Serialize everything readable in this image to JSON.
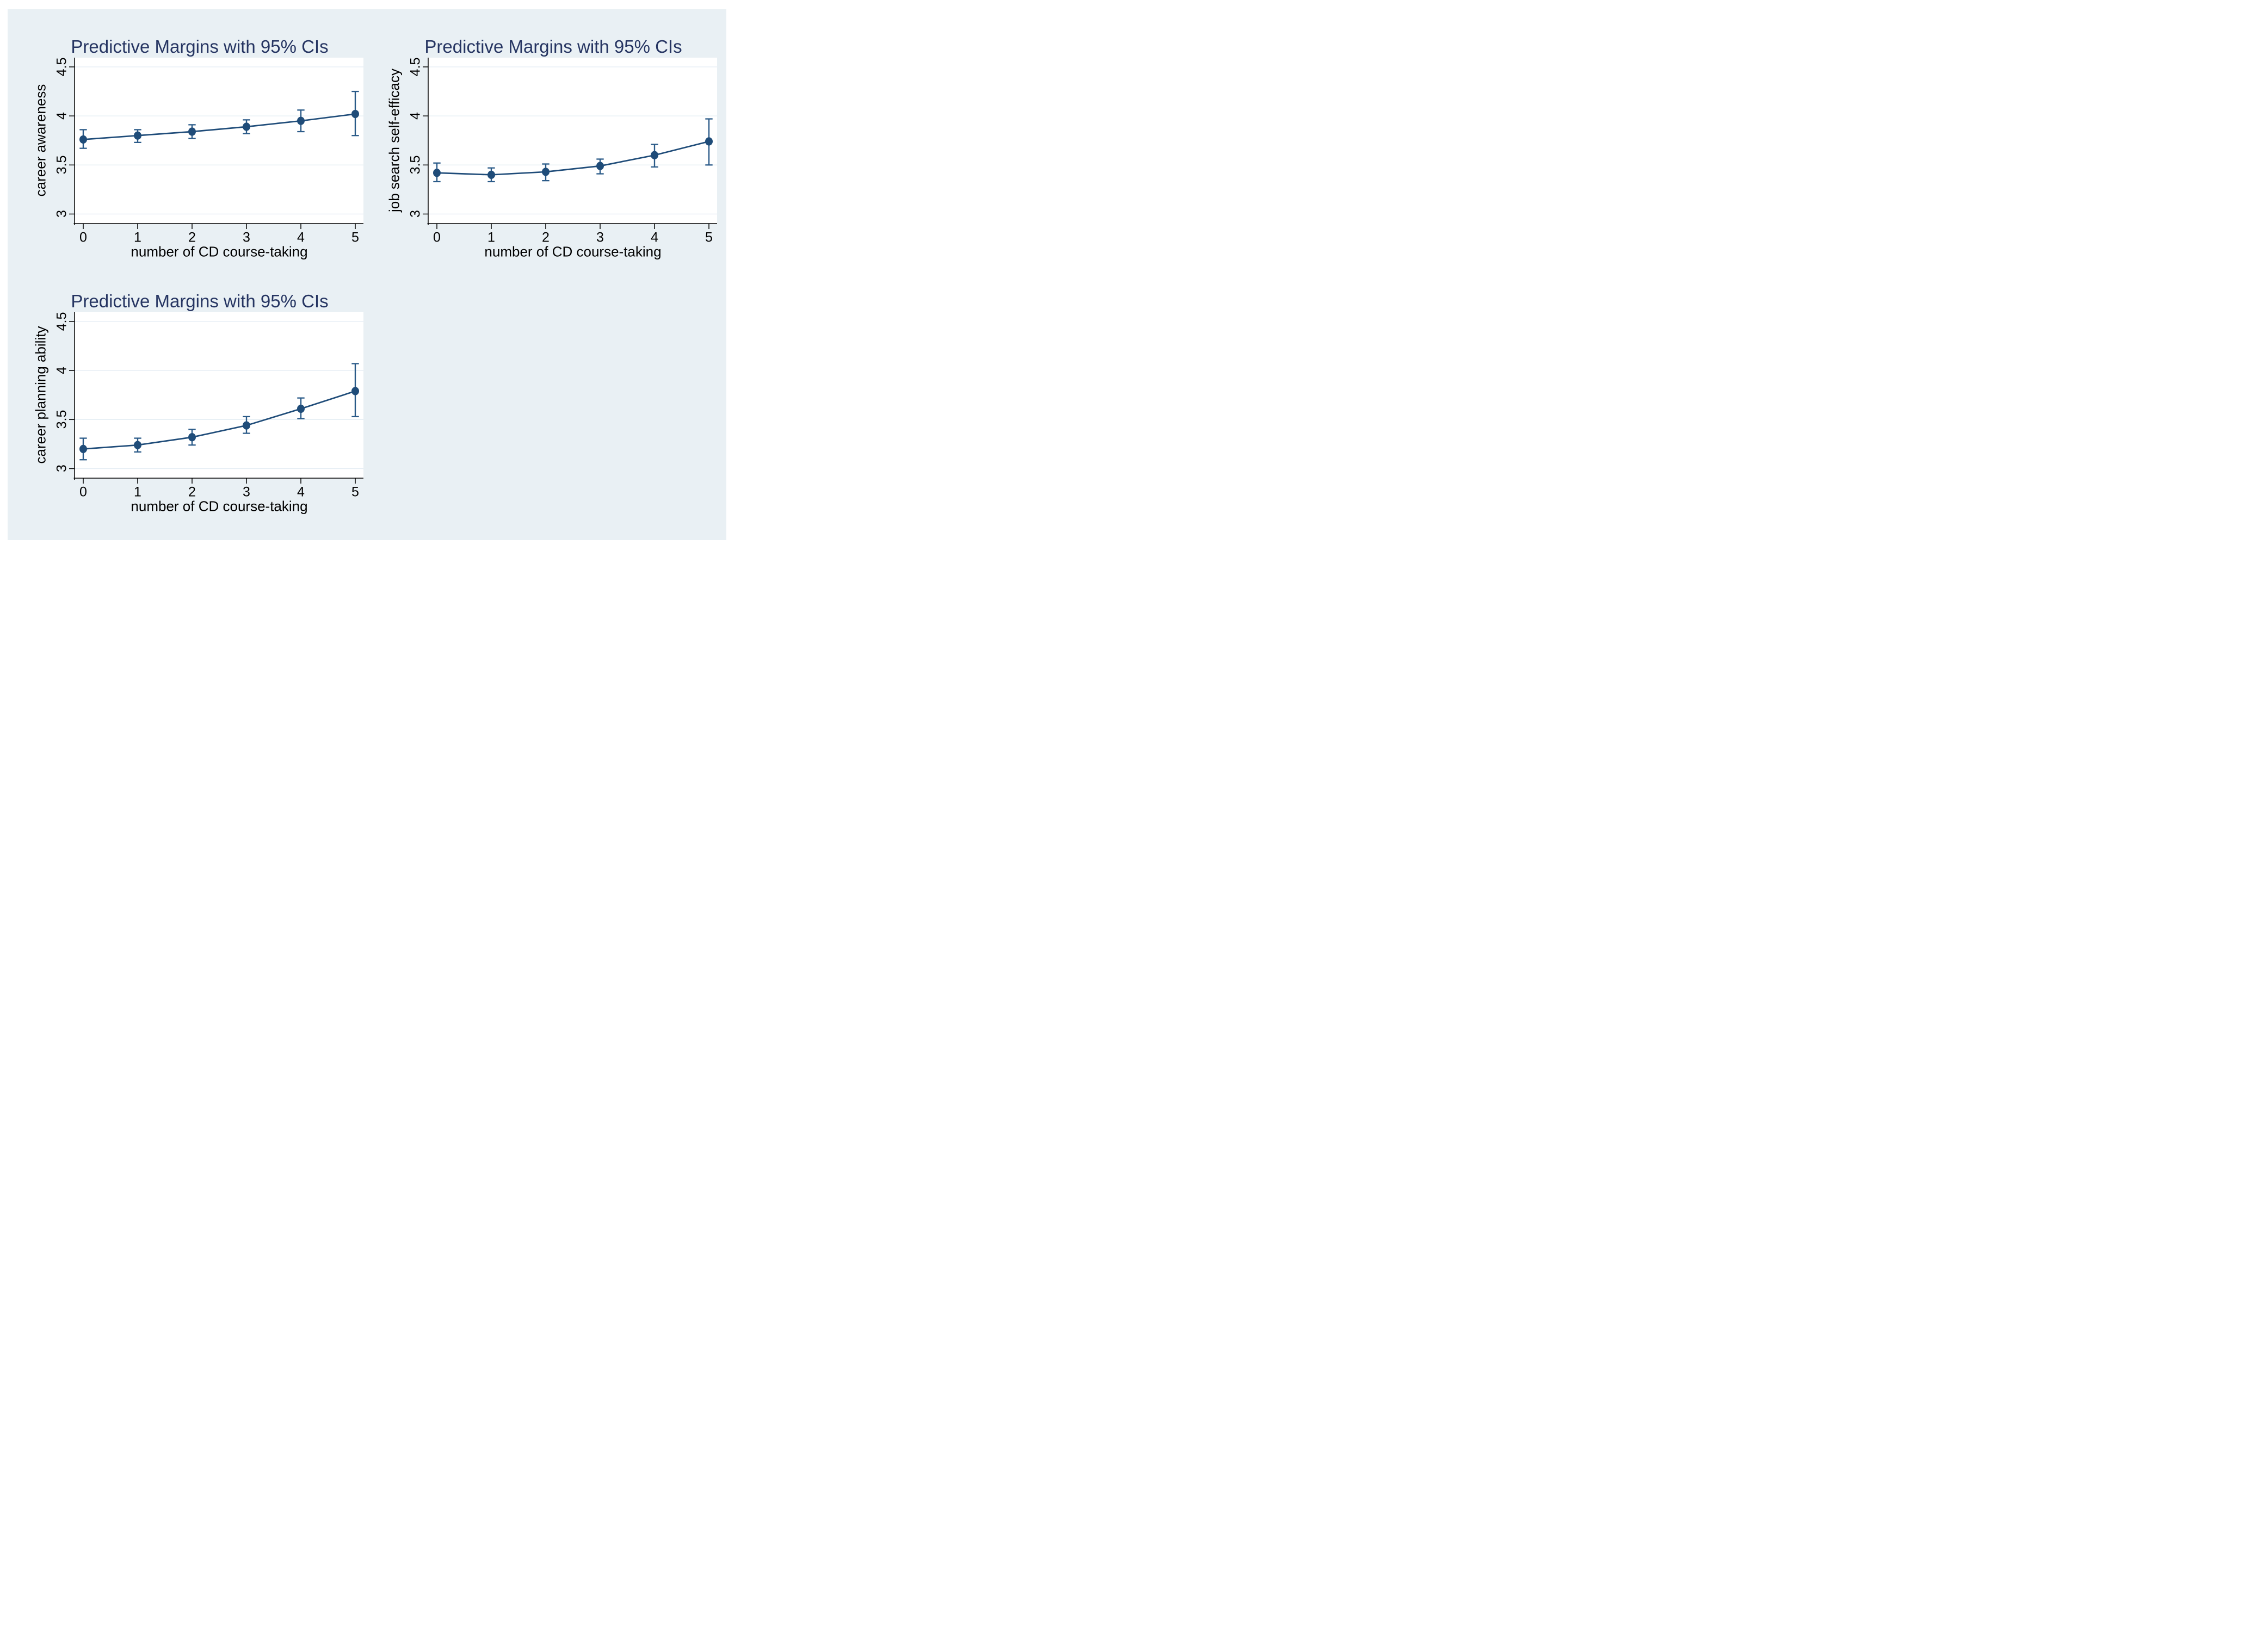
{
  "page": {
    "background": "#ffffff",
    "canvas_color": "#e9f0f4"
  },
  "colors": {
    "navy": "#1f4c79",
    "ci": "#2a5a88",
    "grid": "#e3ecf3",
    "axis": "#000000",
    "title": "#263562",
    "plot_background": "#ffffff"
  },
  "chart_data": [
    {
      "type": "line",
      "title": "Predictive Margins with 95% CIs",
      "xlabel": "number of CD course-taking",
      "ylabel": "career awareness",
      "legend": "none",
      "grid": true,
      "ylim": [
        2.9,
        4.6
      ],
      "x": [
        "0",
        "1",
        "2",
        "3",
        "4",
        "5"
      ],
      "means": [
        3.76,
        3.8,
        3.84,
        3.89,
        3.95,
        4.02
      ],
      "ci_low": [
        3.67,
        3.73,
        3.77,
        3.82,
        3.84,
        3.8
      ],
      "ci_high": [
        3.86,
        3.86,
        3.91,
        3.96,
        4.06,
        4.25
      ],
      "yticks": [
        {
          "value": 4.5,
          "label": "4.5"
        },
        {
          "value": 4.0,
          "label": "4"
        },
        {
          "value": 3.5,
          "label": "3.5"
        },
        {
          "value": 3.0,
          "label": "3"
        }
      ]
    },
    {
      "type": "line",
      "title": "Predictive Margins with 95% CIs",
      "xlabel": "number of CD course-taking",
      "ylabel": "job search self-efficacy",
      "legend": "none",
      "grid": true,
      "ylim": [
        2.9,
        4.6
      ],
      "x": [
        "0",
        "1",
        "2",
        "3",
        "4",
        "5"
      ],
      "means": [
        3.42,
        3.4,
        3.43,
        3.49,
        3.6,
        3.74
      ],
      "ci_low": [
        3.33,
        3.33,
        3.34,
        3.41,
        3.48,
        3.5
      ],
      "ci_high": [
        3.52,
        3.47,
        3.51,
        3.56,
        3.71,
        3.97
      ],
      "yticks": [
        {
          "value": 4.5,
          "label": "4.5"
        },
        {
          "value": 4.0,
          "label": "4"
        },
        {
          "value": 3.5,
          "label": "3.5"
        },
        {
          "value": 3.0,
          "label": "3"
        }
      ]
    },
    {
      "type": "line",
      "title": "Predictive Margins with 95% CIs",
      "xlabel": "number of CD course-taking",
      "ylabel": "career planning ability",
      "legend": "none",
      "grid": true,
      "ylim": [
        2.9,
        4.6
      ],
      "x": [
        "0",
        "1",
        "2",
        "3",
        "4",
        "5"
      ],
      "means": [
        3.2,
        3.24,
        3.32,
        3.44,
        3.61,
        3.79
      ],
      "ci_low": [
        3.09,
        3.17,
        3.24,
        3.36,
        3.51,
        3.53
      ],
      "ci_high": [
        3.31,
        3.31,
        3.4,
        3.53,
        3.72,
        4.07
      ],
      "yticks": [
        {
          "value": 4.5,
          "label": "4.5"
        },
        {
          "value": 4.0,
          "label": "4"
        },
        {
          "value": 3.5,
          "label": "3.5"
        },
        {
          "value": 3.0,
          "label": "3"
        }
      ]
    }
  ]
}
